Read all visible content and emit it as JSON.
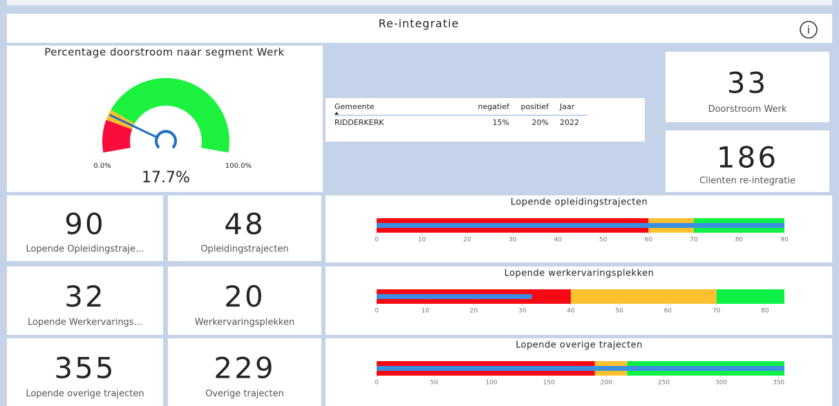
{
  "header": {
    "title": "Re-integratie",
    "info": "i"
  },
  "gauge": {
    "title": "Percentage doorstroom naar segment Werk",
    "value": 17.7,
    "value_label": "17.7%",
    "min": 0,
    "max": 100,
    "min_label": "0.0%",
    "max_label": "100.0%",
    "thresholds": [
      15,
      20
    ],
    "colors": [
      "#fa0c3c",
      "#fcc02b",
      "#1cf23e"
    ],
    "needle_color": "#1f6fc4"
  },
  "table": {
    "columns": [
      "Gemeente",
      "negatief",
      "positief",
      "Jaar"
    ],
    "rows": [
      [
        "RIDDERKERK",
        "15%",
        "20%",
        "2022"
      ]
    ]
  },
  "kpis": [
    {
      "value": 33,
      "label": "Doorstroom Werk"
    },
    {
      "value": 186,
      "label": "Clienten re-integratie"
    },
    {
      "value": 90,
      "label": "Lopende Opleidingstraje..."
    },
    {
      "value": 48,
      "label": "Opleidingstrajecten"
    },
    {
      "value": 32,
      "label": "Lopende Werkervarings..."
    },
    {
      "value": 20,
      "label": "Werkervaringsplekken"
    },
    {
      "value": 355,
      "label": "Lopende overige trajecten"
    },
    {
      "value": 229,
      "label": "Overige trajecten"
    }
  ],
  "bullets": [
    {
      "title": "Lopende opleidingstrajecten",
      "value": 90,
      "thresholds": [
        60,
        70
      ],
      "xlim": [
        0,
        90
      ],
      "xticks": [
        0,
        10,
        20,
        30,
        40,
        50,
        60,
        70,
        80,
        90
      ]
    },
    {
      "title": "Lopende werkervaringsplekken",
      "value": 32,
      "thresholds": [
        40,
        70
      ],
      "xlim": [
        0,
        84
      ],
      "xticks": [
        0,
        10,
        20,
        30,
        40,
        50,
        60,
        70,
        80
      ]
    },
    {
      "title": "Lopende overige trajecten",
      "value": 355,
      "thresholds": [
        190,
        218
      ],
      "xlim": [
        0,
        355
      ],
      "xticks": [
        0,
        50,
        100,
        150,
        200,
        250,
        300,
        350
      ]
    }
  ],
  "bullet_colors": [
    "#f50a14",
    "#fdc12f",
    "#0df046"
  ],
  "bullet_value_color": "#3b8fe0"
}
